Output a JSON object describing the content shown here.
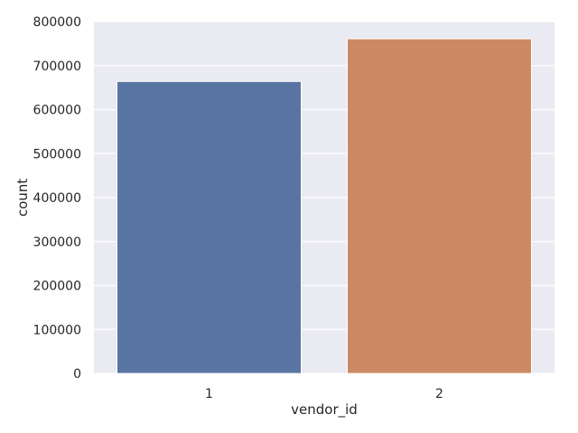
{
  "chart_data": {
    "type": "bar",
    "categories": [
      "1",
      "2"
    ],
    "values": [
      664000,
      761000
    ],
    "bar_colors": [
      "#5975a4",
      "#cc8963"
    ],
    "title": "",
    "xlabel": "vendor_id",
    "ylabel": "count",
    "ylim": [
      0,
      800000
    ],
    "yticks": [
      0,
      100000,
      200000,
      300000,
      400000,
      500000,
      600000,
      700000,
      800000
    ],
    "grid": true,
    "background_color": "#eaeaf2",
    "grid_color": "#ffffff",
    "legend": "none"
  }
}
